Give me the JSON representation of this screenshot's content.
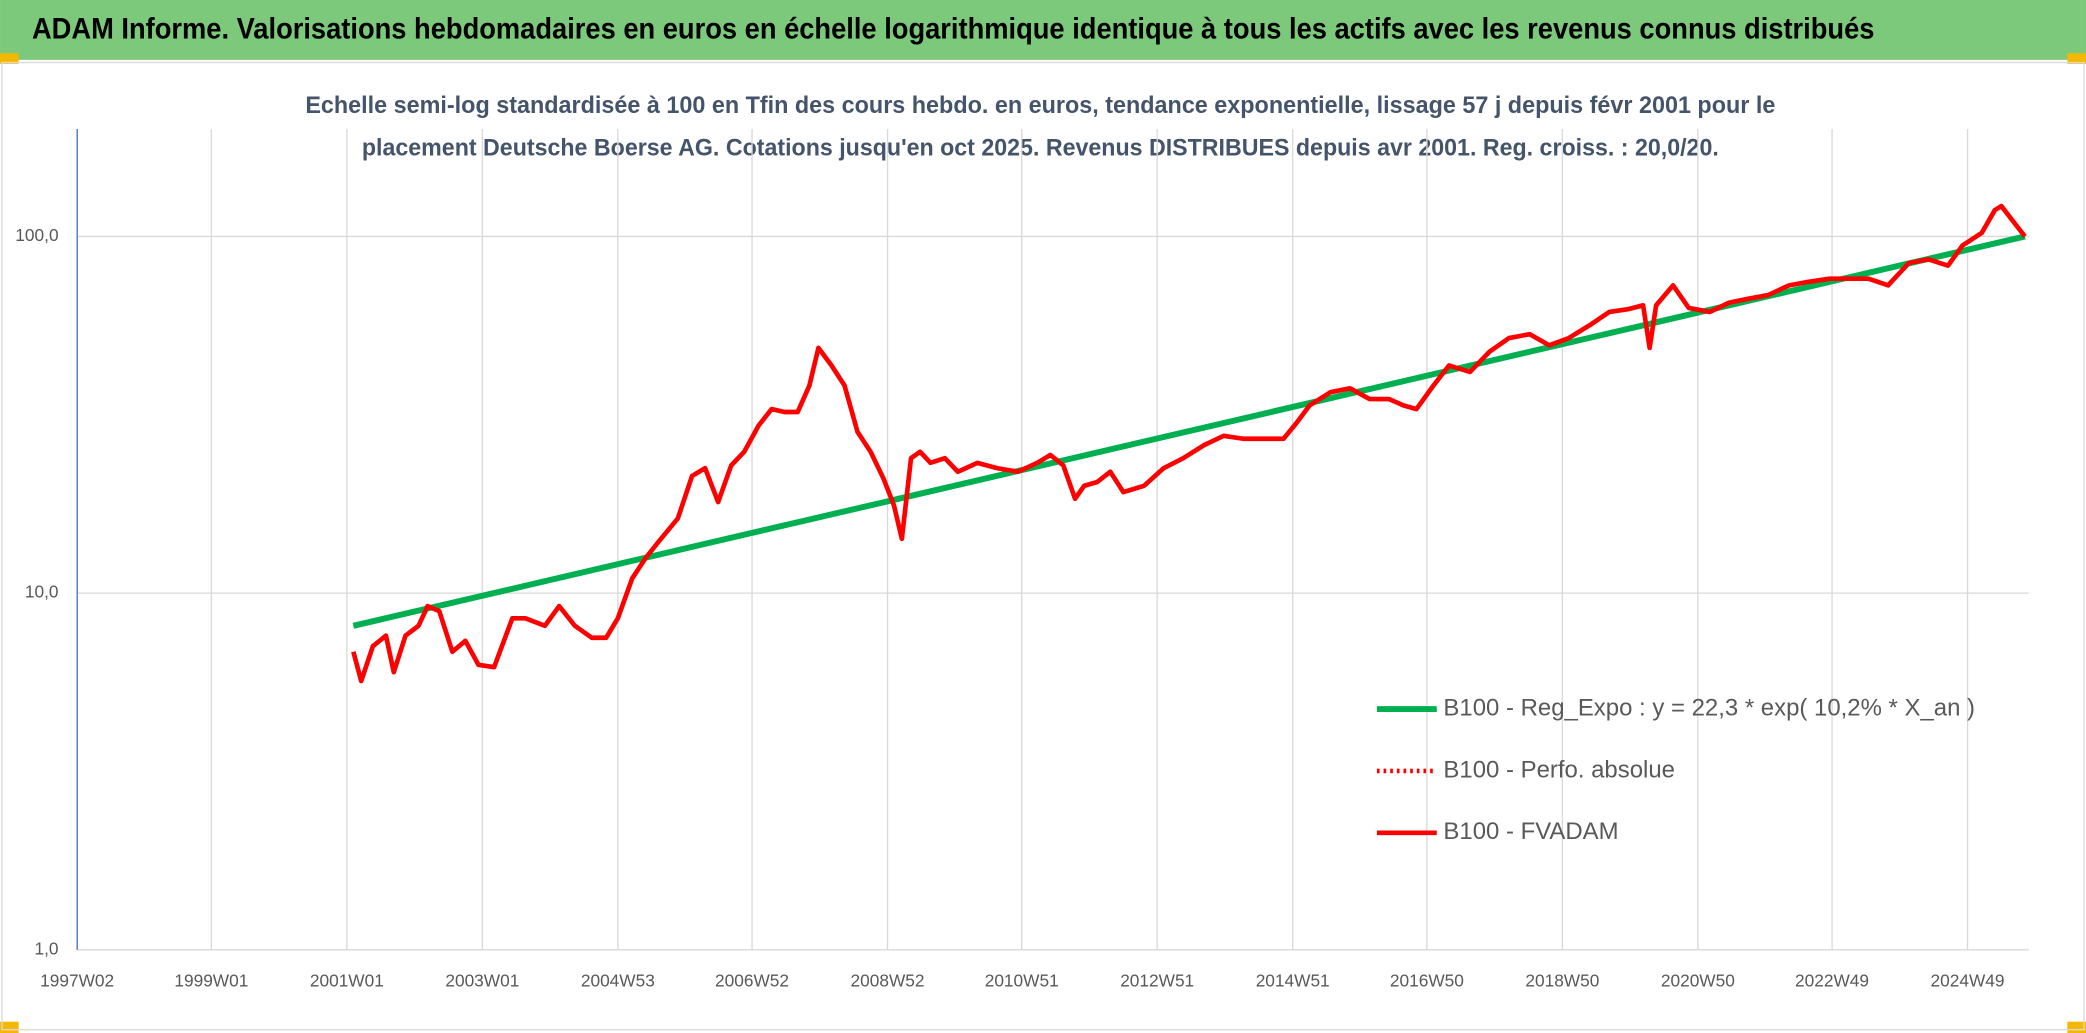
{
  "header": {
    "title": "ADAM Informe. Valorisations hebdomadaires en euros en échelle logarithmique identique à tous les actifs avec les revenus connus distribués"
  },
  "chart_data": {
    "type": "line",
    "subtitle": [
      "Echelle semi-log standardisée à 100 en Tfin des cours hebdo. en euros, tendance exponentielle, lissage 57 j depuis févr 2001 pour le",
      "placement Deutsche Boerse AG. Cotations jusqu'en oct 2025. Revenus DISTRIBUES depuis avr 2001. Reg. croiss. : 20,0/20."
    ],
    "log_scale": true,
    "grid": true,
    "xlim": [
      "1997W02",
      "2025W44"
    ],
    "xticks": [
      "1997W02",
      "1999W01",
      "2001W01",
      "2003W01",
      "2004W53",
      "2006W52",
      "2008W52",
      "2010W51",
      "2012W51",
      "2014W51",
      "2016W50",
      "2018W50",
      "2020W50",
      "2022W49",
      "2024W49"
    ],
    "ylim": [
      1,
      200
    ],
    "yticks": [
      {
        "value": 1,
        "label": "1,0"
      },
      {
        "value": 10,
        "label": "10,0"
      },
      {
        "value": 100,
        "label": "100,0"
      }
    ],
    "series": [
      {
        "name": "B100 - Reg_Expo : y = 22,3 * exp( 10,2% *  X_an )",
        "color": "#00b050",
        "style": "solid",
        "x": [
          "2001W06",
          "2025W41"
        ],
        "values": [
          8.1,
          100
        ]
      },
      {
        "name": "B100 - Perfo. absolue",
        "color": "#ff0000",
        "style": "dotted",
        "x": [],
        "values": []
      },
      {
        "name": "B100 - FVADAM",
        "color": "#ff0000",
        "style": "solid",
        "x": [
          "2001W06",
          "2001W12",
          "2001W21",
          "2001W31",
          "2001W37",
          "2001W46",
          "2002W04",
          "2002W11",
          "2002W20",
          "2002W30",
          "2002W40",
          "2002W50",
          "2003W10",
          "2003W24",
          "2003W34",
          "2003W49",
          "2004W08",
          "2004W20",
          "2004W33",
          "2004W44",
          "2005W01",
          "2005W12",
          "2005W22",
          "2005W32",
          "2005W47",
          "2006W06",
          "2006W16",
          "2006W26",
          "2006W36",
          "2006W46",
          "2007W05",
          "2007W15",
          "2007W25",
          "2007W35",
          "2007W44",
          "2007W51",
          "2008W09",
          "2008W19",
          "2008W29",
          "2008W39",
          "2008W49",
          "2009W05",
          "2009W11",
          "2009W18",
          "2009W25",
          "2009W33",
          "2009W44",
          "2010W02",
          "2010W17",
          "2010W32",
          "2010W48",
          "2011W11",
          "2011W21",
          "2011W31",
          "2011W40",
          "2011W47",
          "2012W05",
          "2012W15",
          "2012W25",
          "2012W41",
          "2013W04",
          "2013W19",
          "2013W35",
          "2013W50",
          "2014W13",
          "2014W29",
          "2014W44",
          "2015W02",
          "2015W12",
          "2015W28",
          "2015W43",
          "2016W06",
          "2016W21",
          "2016W32",
          "2016W42",
          "2017W03",
          "2017W15",
          "2017W31",
          "2017W46",
          "2018W09",
          "2018W25",
          "2018W40",
          "2019W03",
          "2019W19",
          "2019W34",
          "2019W49",
          "2020W08",
          "2020W13",
          "2020W18",
          "2020W31",
          "2020W43",
          "2021W07",
          "2021W22",
          "2021W37",
          "2021W52",
          "2022W16",
          "2022W31",
          "2022W47",
          "2023W10",
          "2023W25",
          "2023W40",
          "2024W04",
          "2024W19",
          "2024W34",
          "2024W45",
          "2025W08",
          "2025W18",
          "2025W23",
          "2025W33",
          "2025W41"
        ],
        "values": [
          6.85,
          5.67,
          7.1,
          7.6,
          6.0,
          7.6,
          8.1,
          9.2,
          8.9,
          6.85,
          7.35,
          6.3,
          6.2,
          8.5,
          8.5,
          8.1,
          9.2,
          8.1,
          7.5,
          7.5,
          8.5,
          11.0,
          12.5,
          13.9,
          16.2,
          21.3,
          22.4,
          18.0,
          22.8,
          24.9,
          29.5,
          32.8,
          32.2,
          32.2,
          38.2,
          48.7,
          43.5,
          38.2,
          28.3,
          24.9,
          20.9,
          17.6,
          14.2,
          23.9,
          24.9,
          23.2,
          23.9,
          21.9,
          23.2,
          22.4,
          21.9,
          23.2,
          24.4,
          22.8,
          18.4,
          20.0,
          20.5,
          21.9,
          19.2,
          20.0,
          22.4,
          23.9,
          26.0,
          27.6,
          27.1,
          27.1,
          27.1,
          30.0,
          33.6,
          36.6,
          37.5,
          35.0,
          35.0,
          33.6,
          32.8,
          38.2,
          43.5,
          41.7,
          47.5,
          51.9,
          53.2,
          49.5,
          51.9,
          56.4,
          61.4,
          62.6,
          64.1,
          48.7,
          64.1,
          72.9,
          63.0,
          61.4,
          65.2,
          66.9,
          68.5,
          72.9,
          74.6,
          76.1,
          76.1,
          76.1,
          72.9,
          84.2,
          86.3,
          82.8,
          94.3,
          102.4,
          118.6,
          121.6,
          109.1,
          100
        ]
      }
    ]
  }
}
